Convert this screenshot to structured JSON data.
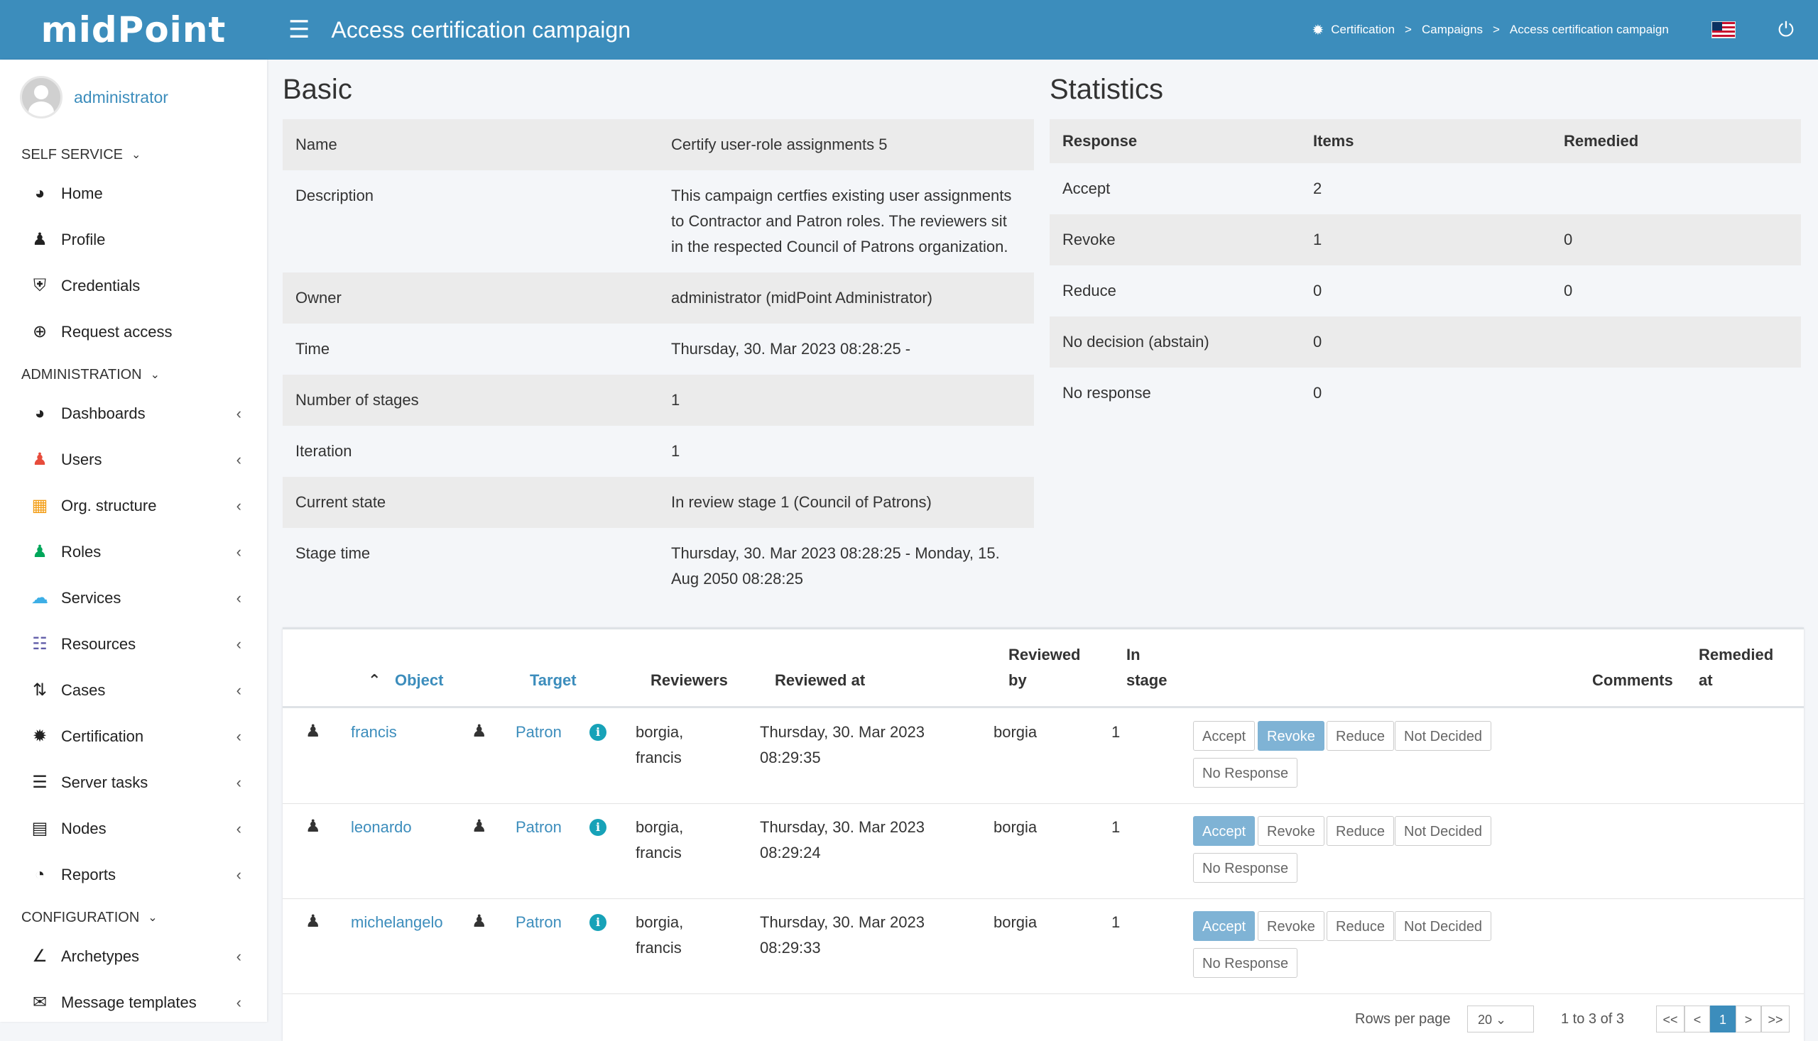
{
  "header": {
    "logo": "midPoint",
    "title": "Access certification campaign",
    "breadcrumb": [
      "Certification",
      "Campaigns",
      "Access certification campaign"
    ]
  },
  "sidebar": {
    "user": "administrator",
    "sections": [
      {
        "label": "SELF SERVICE",
        "items": [
          {
            "label": "Home",
            "icon": "dashboard-icon"
          },
          {
            "label": "Profile",
            "icon": "user-icon"
          },
          {
            "label": "Credentials",
            "icon": "shield-icon"
          },
          {
            "label": "Request access",
            "icon": "plus-circle-icon"
          }
        ]
      },
      {
        "label": "ADMINISTRATION",
        "items": [
          {
            "label": "Dashboards",
            "icon": "dashboard-icon"
          },
          {
            "label": "Users",
            "icon": "user-icon"
          },
          {
            "label": "Org. structure",
            "icon": "building-icon"
          },
          {
            "label": "Roles",
            "icon": "role-icon"
          },
          {
            "label": "Services",
            "icon": "cloud-icon"
          },
          {
            "label": "Resources",
            "icon": "database-icon"
          },
          {
            "label": "Cases",
            "icon": "cases-icon"
          },
          {
            "label": "Certification",
            "icon": "certification-icon"
          },
          {
            "label": "Server tasks",
            "icon": "tasks-icon"
          },
          {
            "label": "Nodes",
            "icon": "server-icon"
          },
          {
            "label": "Reports",
            "icon": "pie-chart-icon"
          }
        ]
      },
      {
        "label": "CONFIGURATION",
        "items": [
          {
            "label": "Archetypes",
            "icon": "archetype-icon"
          },
          {
            "label": "Message templates",
            "icon": "message-icon"
          }
        ]
      }
    ]
  },
  "basic": {
    "title": "Basic",
    "rows": [
      {
        "label": "Name",
        "value": "Certify user-role assignments 5"
      },
      {
        "label": "Description",
        "value": "This campaign certfies existing user assignments to Contractor and Patron roles. The reviewers sit in the respected Council of Patrons organization."
      },
      {
        "label": "Owner",
        "value": "administrator (midPoint Administrator)"
      },
      {
        "label": "Time",
        "value": "Thursday, 30. Mar 2023 08:28:25 -"
      },
      {
        "label": "Number of stages",
        "value": "1"
      },
      {
        "label": "Iteration",
        "value": "1"
      },
      {
        "label": "Current state",
        "value": "In review stage 1 (Council of Patrons)"
      },
      {
        "label": "Stage time",
        "value": "Thursday, 30. Mar 2023 08:28:25 - Monday, 15. Aug 2050 08:28:25"
      }
    ]
  },
  "statistics": {
    "title": "Statistics",
    "headers": [
      "Response",
      "Items",
      "Remedied"
    ],
    "rows": [
      [
        "Accept",
        "2",
        ""
      ],
      [
        "Revoke",
        "1",
        "0"
      ],
      [
        "Reduce",
        "0",
        "0"
      ],
      [
        "No decision (abstain)",
        "0",
        ""
      ],
      [
        "No response",
        "0",
        ""
      ]
    ]
  },
  "cases": {
    "headers": {
      "object": "Object",
      "target": "Target",
      "reviewers": "Reviewers",
      "reviewed_at": "Reviewed at",
      "reviewed_by": "Reviewed by",
      "in_stage": "In stage",
      "comments": "Comments",
      "remedied_at": "Remedied at"
    },
    "buttons": [
      "Accept",
      "Revoke",
      "Reduce",
      "Not Decided",
      "No Response"
    ],
    "rows": [
      {
        "object": "francis",
        "target": "Patron",
        "reviewers": "borgia, francis",
        "reviewed_at": "Thursday, 30. Mar 2023 08:29:35",
        "reviewed_by": "borgia",
        "in_stage": "1",
        "selected": "Revoke"
      },
      {
        "object": "leonardo",
        "target": "Patron",
        "reviewers": "borgia, francis",
        "reviewed_at": "Thursday, 30. Mar 2023 08:29:24",
        "reviewed_by": "borgia",
        "in_stage": "1",
        "selected": "Accept"
      },
      {
        "object": "michelangelo",
        "target": "Patron",
        "reviewers": "borgia, francis",
        "reviewed_at": "Thursday, 30. Mar 2023 08:29:33",
        "reviewed_by": "borgia",
        "in_stage": "1",
        "selected": "Accept"
      }
    ]
  },
  "pager": {
    "rows_per_page_label": "Rows per page",
    "rows_per_page": "20",
    "range": "1 to 3 of 3",
    "buttons": [
      "<<",
      "<",
      "1",
      ">",
      ">>"
    ]
  },
  "colors": {
    "header": "#3c8dbc",
    "accent": "#3c8dbc",
    "selected_button": "#7fb3d5"
  }
}
